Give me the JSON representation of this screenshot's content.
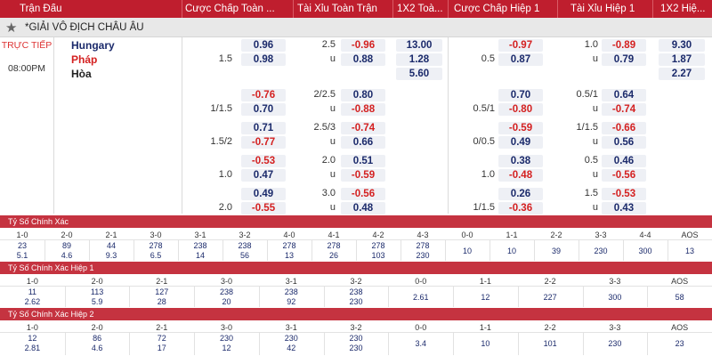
{
  "header": {
    "cols": [
      "Trận Đấu",
      "Cược Chấp Toàn ...",
      "Tài Xỉu Toàn Trận",
      "1X2 Toà...",
      "Cược Chấp Hiệp 1",
      "Tài Xỉu Hiệp 1",
      "1X2 Hiệ..."
    ]
  },
  "league": {
    "name": "*GIẢI VÔ ĐỊCH CHÂU ÂU"
  },
  "match": {
    "status": "TRỰC TIẾP",
    "time": "08:00PM",
    "teams": [
      "Hungary",
      "Pháp",
      "Hòa"
    ],
    "colors": {
      "home": "#1b2a6b",
      "away": "#d42020",
      "draw": "#222222"
    },
    "rows": [
      {
        "hdp_line": "1.5",
        "hdp_top": "0.96",
        "hdp_bot": "0.98",
        "ou_line": "2.5",
        "ou_u": "u",
        "ou_top": "-0.96",
        "ou_bot": "0.88",
        "x12": [
          "13.00",
          "1.28",
          "5.60"
        ],
        "h1_hdp_line": "0.5",
        "h1_hdp_top": "-0.97",
        "h1_hdp_bot": "0.87",
        "h1_ou_line": "1.0",
        "h1_ou_u": "u",
        "h1_ou_top": "-0.89",
        "h1_ou_bot": "0.79",
        "h1_x12": [
          "9.30",
          "1.87",
          "2.27"
        ]
      },
      {
        "hdp_line": "1/1.5",
        "hdp_top": "-0.76",
        "hdp_bot": "0.70",
        "ou_line": "2/2.5",
        "ou_u": "u",
        "ou_top": "0.80",
        "ou_bot": "-0.88",
        "h1_hdp_line": "0.5/1",
        "h1_hdp_top": "0.70",
        "h1_hdp_bot": "-0.80",
        "h1_ou_line": "0.5/1",
        "h1_ou_u": "u",
        "h1_ou_top": "0.64",
        "h1_ou_bot": "-0.74"
      },
      {
        "hdp_line": "1.5/2",
        "hdp_top": "0.71",
        "hdp_bot": "-0.77",
        "ou_line": "2.5/3",
        "ou_u": "u",
        "ou_top": "-0.74",
        "ou_bot": "0.66",
        "h1_hdp_line": "0/0.5",
        "h1_hdp_top": "-0.59",
        "h1_hdp_bot": "0.49",
        "h1_ou_line": "1/1.5",
        "h1_ou_u": "u",
        "h1_ou_top": "-0.66",
        "h1_ou_bot": "0.56"
      },
      {
        "hdp_line": "1.0",
        "hdp_top": "-0.53",
        "hdp_bot": "0.47",
        "ou_line": "2.0",
        "ou_u": "u",
        "ou_top": "0.51",
        "ou_bot": "-0.59",
        "h1_hdp_line": "1.0",
        "h1_hdp_top": "0.38",
        "h1_hdp_bot": "-0.48",
        "h1_ou_line": "0.5",
        "h1_ou_u": "u",
        "h1_ou_top": "0.46",
        "h1_ou_bot": "-0.56"
      },
      {
        "hdp_line": "2.0",
        "hdp_top": "0.49",
        "hdp_bot": "-0.55",
        "ou_line": "3.0",
        "ou_u": "u",
        "ou_top": "-0.56",
        "ou_bot": "0.48",
        "h1_hdp_line": "1/1.5",
        "h1_hdp_top": "0.26",
        "h1_hdp_bot": "-0.36",
        "h1_ou_line": "1.5",
        "h1_ou_u": "u",
        "h1_ou_top": "-0.53",
        "h1_ou_bot": "0.43"
      }
    ]
  },
  "exact": {
    "title": "Tỷ Số Chính Xác",
    "labels": [
      "1-0",
      "2-0",
      "2-1",
      "3-0",
      "3-1",
      "3-2",
      "4-0",
      "4-1",
      "4-2",
      "4-3",
      "0-0",
      "1-1",
      "2-2",
      "3-3",
      "4-4",
      "AOS"
    ],
    "top": [
      "23",
      "89",
      "44",
      "278",
      "238",
      "238",
      "278",
      "278",
      "278",
      "278",
      "10",
      "10",
      "39",
      "230",
      "300",
      "13"
    ],
    "bot": [
      "5.1",
      "4.6",
      "9.3",
      "6.5",
      "14",
      "56",
      "13",
      "26",
      "103",
      "230",
      "",
      "",
      "",
      "",
      "",
      ""
    ]
  },
  "exact_h1": {
    "title": "Tỷ Số Chính Xác Hiệp 1",
    "labels": [
      "1-0",
      "2-0",
      "2-1",
      "3-0",
      "3-1",
      "3-2",
      "0-0",
      "1-1",
      "2-2",
      "3-3",
      "AOS"
    ],
    "top": [
      "11",
      "113",
      "127",
      "238",
      "238",
      "238",
      "2.61",
      "12",
      "227",
      "300",
      "58"
    ],
    "bot": [
      "2.62",
      "5.9",
      "28",
      "20",
      "92",
      "230",
      "",
      "",
      "",
      "",
      ""
    ]
  },
  "exact_h2": {
    "title": "Tỷ Số Chính Xác Hiệp 2",
    "labels": [
      "1-0",
      "2-0",
      "2-1",
      "3-0",
      "3-1",
      "3-2",
      "0-0",
      "1-1",
      "2-2",
      "3-3",
      "AOS"
    ],
    "top": [
      "12",
      "86",
      "72",
      "230",
      "230",
      "230",
      "3.4",
      "10",
      "101",
      "230",
      "23"
    ],
    "bot": [
      "2.81",
      "4.6",
      "17",
      "12",
      "42",
      "230",
      "",
      "",
      "",
      "",
      ""
    ]
  }
}
